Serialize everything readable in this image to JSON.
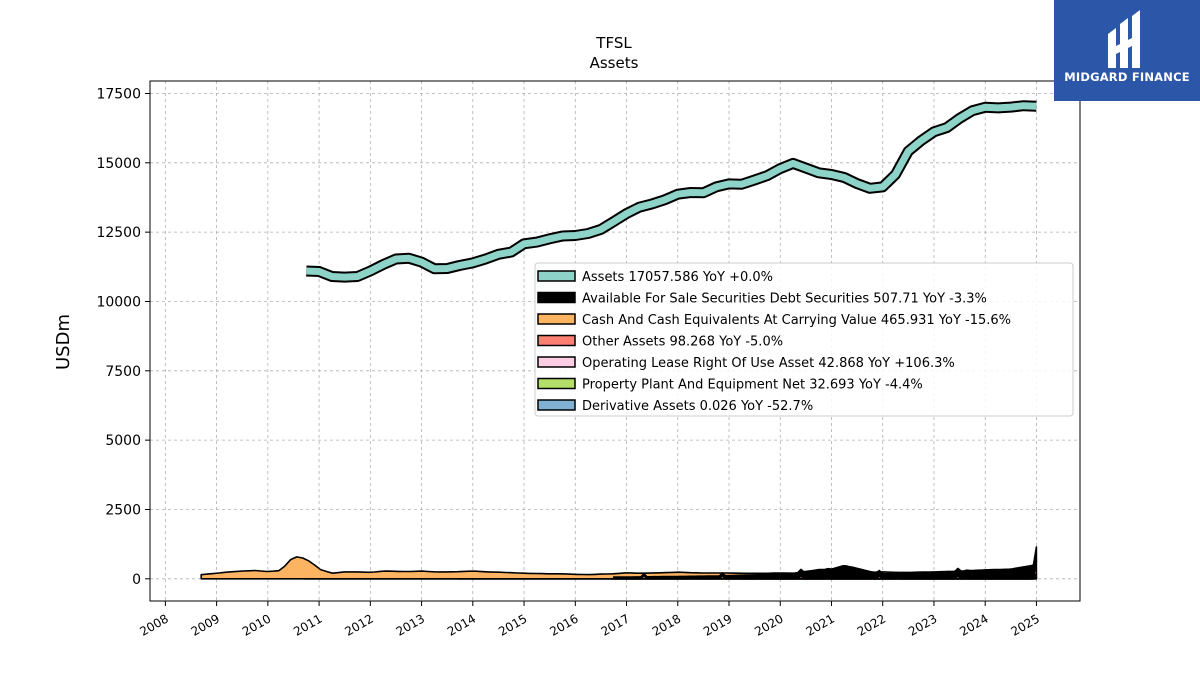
{
  "brand": {
    "name": "MIDGARD FINANCE",
    "bg_color": "#2c56a8"
  },
  "chart_data": {
    "type": "area",
    "title": "TFSL",
    "subtitle": "Assets",
    "ylabel": "USDm",
    "xlabel": "",
    "ylim": [
      -800,
      17950
    ],
    "xlim": [
      2007.7,
      2025.85
    ],
    "yticks": [
      0,
      2500,
      5000,
      7500,
      10000,
      12500,
      15000,
      17500
    ],
    "xticks": [
      "2008",
      "2009",
      "2010",
      "2011",
      "2012",
      "2013",
      "2014",
      "2015",
      "2016",
      "2017",
      "2018",
      "2019",
      "2020",
      "2021",
      "2022",
      "2023",
      "2024",
      "2025"
    ],
    "grid": true,
    "legend_placement": "center-right",
    "series": [
      {
        "name": "Assets",
        "legend_label": "Assets  17057.586 YoY +0.0%",
        "color": "#8dd3c7",
        "style": "line-band",
        "x": [
          2010.75,
          2011.0,
          2011.25,
          2011.5,
          2011.75,
          2012.0,
          2012.25,
          2012.5,
          2012.75,
          2013.0,
          2013.25,
          2013.5,
          2013.75,
          2014.0,
          2014.25,
          2014.5,
          2014.75,
          2015.0,
          2015.25,
          2015.5,
          2015.75,
          2016.0,
          2016.25,
          2016.5,
          2016.75,
          2017.0,
          2017.25,
          2017.5,
          2017.75,
          2018.0,
          2018.25,
          2018.5,
          2018.75,
          2019.0,
          2019.25,
          2019.5,
          2019.75,
          2020.0,
          2020.25,
          2020.5,
          2020.75,
          2021.0,
          2021.25,
          2021.5,
          2021.75,
          2022.0,
          2022.25,
          2022.5,
          2022.75,
          2023.0,
          2023.25,
          2023.5,
          2023.75,
          2024.0,
          2024.25,
          2024.5,
          2024.75,
          2025.0
        ],
        "values": [
          11100,
          11080,
          10900,
          10880,
          10900,
          11100,
          11330,
          11530,
          11560,
          11420,
          11180,
          11190,
          11300,
          11390,
          11530,
          11700,
          11780,
          12080,
          12140,
          12260,
          12360,
          12380,
          12450,
          12600,
          12880,
          13170,
          13400,
          13520,
          13670,
          13870,
          13930,
          13920,
          14130,
          14240,
          14230,
          14380,
          14540,
          14790,
          14980,
          14810,
          14640,
          14580,
          14470,
          14250,
          14080,
          14130,
          14580,
          15420,
          15800,
          16120,
          16270,
          16600,
          16880,
          17000,
          16980,
          17010,
          17060,
          17040
        ]
      },
      {
        "name": "Available For Sale Securities Debt Securities",
        "legend_label": "Available For Sale Securities Debt Securities  507.71 YoY -3.3%",
        "color": "#000000",
        "style": "stacked",
        "x": [
          2016.75,
          2017.25,
          2017.75,
          2018.25,
          2018.75,
          2019.25,
          2019.75,
          2020.25,
          2020.75,
          2021.0,
          2021.25,
          2021.5,
          2021.75,
          2022.0,
          2022.5,
          2023.0,
          2023.5,
          2024.0,
          2024.5,
          2025.0
        ],
        "values": [
          60,
          70,
          80,
          90,
          100,
          130,
          160,
          200,
          330,
          350,
          480,
          380,
          260,
          180,
          180,
          230,
          280,
          320,
          350,
          508
        ]
      },
      {
        "name": "Cash And Cash Equivalents At Carrying Value",
        "legend_label": "Cash And Cash Equivalents At Carrying Value  465.931 YoY -15.6%",
        "color": "#fdb462",
        "style": "stacked",
        "x": [
          2008.7,
          2009.0,
          2009.25,
          2009.5,
          2009.75,
          2010.0,
          2010.25,
          2010.45,
          2010.6,
          2010.85,
          2011.0,
          2011.25,
          2011.5,
          2011.75,
          2012.0,
          2012.25,
          2012.5,
          2012.75,
          2013.0,
          2013.25,
          2013.5,
          2013.75,
          2014.0,
          2014.25,
          2014.5,
          2014.75,
          2015.0,
          2015.25,
          2015.5,
          2015.75,
          2016.0,
          2016.25,
          2016.5,
          2016.75,
          2017.0,
          2017.25,
          2017.5,
          2017.75,
          2018.0,
          2018.25,
          2018.5,
          2018.75,
          2019.0,
          2019.25,
          2019.5,
          2019.75,
          2020.0,
          2020.25,
          2020.5,
          2020.75,
          2021.0,
          2021.25,
          2021.5,
          2021.75,
          2022.0,
          2022.25,
          2022.5,
          2022.75,
          2023.0,
          2023.25,
          2023.5,
          2023.75,
          2024.0,
          2024.25,
          2024.5,
          2024.75,
          2025.0
        ],
        "values": [
          150,
          200,
          250,
          280,
          300,
          260,
          300,
          700,
          820,
          600,
          350,
          200,
          250,
          250,
          230,
          280,
          270,
          260,
          280,
          250,
          250,
          260,
          280,
          250,
          240,
          220,
          200,
          190,
          180,
          180,
          160,
          150,
          170,
          180,
          220,
          200,
          210,
          220,
          240,
          220,
          210,
          210,
          210,
          200,
          200,
          200,
          210,
          200,
          190,
          180,
          190,
          200,
          220,
          230,
          250,
          230,
          230,
          240,
          250,
          260,
          250,
          260,
          280,
          300,
          290,
          280,
          466
        ]
      },
      {
        "name": "Other Assets",
        "legend_label": "Other Assets  98.268 YoY -5.0%",
        "color": "#fb8072",
        "style": "stacked",
        "x": [
          2010.7,
          2011.5,
          2012.5,
          2013.7,
          2014.5,
          2016.0,
          2017.5,
          2019.0,
          2020.5,
          2022.0,
          2023.5,
          2025.0
        ],
        "values": [
          170,
          150,
          160,
          140,
          130,
          120,
          110,
          100,
          100,
          100,
          100,
          98
        ]
      },
      {
        "name": "Operating Lease Right Of Use Asset",
        "legend_label": "Operating Lease Right Of Use Asset  42.868 YoY +106.3%",
        "color": "#fccde5",
        "style": "stacked",
        "x": [
          2019.25,
          2020.5,
          2022.0,
          2023.5,
          2024.5,
          2025.0
        ],
        "values": [
          20,
          20,
          20,
          20,
          21,
          43
        ]
      },
      {
        "name": "Property Plant And Equipment Net",
        "legend_label": "Property Plant And Equipment Net  32.693 YoY -4.4%",
        "color": "#b3de69",
        "style": "stacked",
        "x": [
          2013.7,
          2016.7,
          2018.0,
          2020.0,
          2022.0,
          2023.5,
          2025.0
        ],
        "values": [
          170,
          90,
          60,
          45,
          38,
          34,
          33
        ]
      },
      {
        "name": "Derivative Assets",
        "legend_label": "Derivative Assets  0.026 YoY -52.7%",
        "color": "#80b1d3",
        "style": "stacked",
        "x": [
          2016.7,
          2018.0,
          2020.0,
          2022.0,
          2023.5,
          2025.0
        ],
        "values": [
          140,
          60,
          20,
          5,
          1,
          0.026
        ]
      }
    ]
  }
}
